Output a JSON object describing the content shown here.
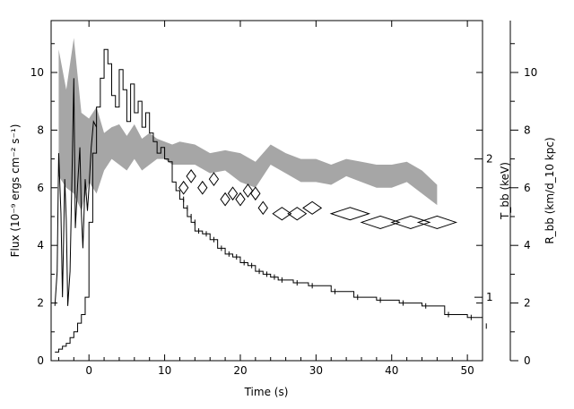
{
  "chart_data": {
    "type": "line",
    "title": "",
    "xlabel": "Time (s)",
    "ylabel_left": "Flux (10⁻⁹ ergs cm⁻² s⁻¹)",
    "ylabel_right_1": "T_bb (keV)",
    "ylabel_right_2": "R_bb (km/d_10 kpc)",
    "xlim": [
      -5,
      52
    ],
    "ylim": [
      0,
      11.8
    ],
    "x_ticks": [
      0,
      10,
      20,
      30,
      40,
      50
    ],
    "x_tick_labels": [
      "0",
      "10",
      "20",
      "30",
      "40",
      "50"
    ],
    "y_ticks": [
      0,
      2,
      4,
      6,
      8,
      10
    ],
    "y_tick_labels": [
      "0",
      "2",
      "4",
      "6",
      "8",
      "10"
    ],
    "y_axis_r1_ticks": [
      {
        "value": 1,
        "label": "1",
        "flux_pos": 2.2
      },
      {
        "value": 2,
        "label": "2",
        "flux_pos": 7.0
      }
    ],
    "y_axis_r2_ticks": [
      0,
      2,
      4,
      6,
      8,
      10
    ],
    "y_axis_r2_tick_labels": [
      "0",
      "2",
      "4",
      "6",
      "8",
      "10"
    ],
    "series": [
      {
        "role": "flux_histogram",
        "style": "step",
        "x": [
          -4.5,
          -4,
          -3.5,
          -3,
          -2.5,
          -2,
          -1.5,
          -1,
          -0.5,
          0,
          0.5,
          1,
          1.5,
          2,
          2.5,
          3,
          3.5,
          4,
          4.5,
          5,
          5.5,
          6,
          6.5,
          7,
          7.5,
          8,
          8.5,
          9,
          9.5,
          10,
          10.5,
          11,
          11.5,
          12,
          12.5,
          13,
          13.5,
          14,
          15,
          16,
          17,
          18,
          19,
          20,
          21,
          22,
          23,
          24,
          25,
          27,
          29,
          32,
          35,
          38,
          41,
          44,
          47,
          50,
          52
        ],
        "y": [
          0.3,
          0.4,
          0.5,
          0.6,
          0.8,
          1.0,
          1.3,
          1.6,
          2.2,
          4.8,
          7.2,
          8.8,
          9.8,
          10.8,
          10.3,
          9.2,
          8.8,
          10.1,
          9.4,
          8.3,
          9.6,
          8.6,
          9.0,
          8.1,
          8.6,
          7.9,
          7.6,
          7.2,
          7.4,
          7.0,
          6.9,
          6.2,
          5.9,
          5.6,
          5.3,
          5.0,
          4.8,
          4.5,
          4.4,
          4.2,
          3.9,
          3.7,
          3.6,
          3.4,
          3.3,
          3.1,
          3.0,
          2.9,
          2.8,
          2.7,
          2.6,
          2.4,
          2.2,
          2.1,
          2.0,
          1.9,
          1.6,
          1.5,
          1.2
        ]
      },
      {
        "role": "flux_early_noisy",
        "style": "line",
        "x": [
          -4.5,
          -4.2,
          -4,
          -3.7,
          -3.5,
          -3.2,
          -3,
          -2.8,
          -2.5,
          -2.2,
          -2,
          -1.8,
          -1.5,
          -1.2,
          -1,
          -0.8,
          -0.5,
          -0.2,
          0,
          0.3,
          0.6,
          1
        ],
        "y": [
          1.9,
          3.1,
          7.2,
          5.1,
          2.2,
          6.3,
          4.9,
          1.9,
          3.1,
          7.0,
          9.8,
          4.6,
          6.1,
          7.4,
          5.1,
          3.9,
          6.3,
          5.2,
          6.0,
          7.4,
          8.3,
          8.1
        ]
      },
      {
        "role": "radius_band",
        "style": "band",
        "x": [
          -4,
          -3,
          -2,
          -1,
          0,
          1,
          2,
          3,
          4,
          5,
          6,
          7,
          8,
          9,
          10,
          11,
          12,
          14,
          16,
          18,
          20,
          22,
          24,
          26,
          28,
          30,
          32,
          34,
          36,
          38,
          40,
          42,
          44,
          46
        ],
        "low": [
          6.4,
          6.0,
          5.8,
          5.2,
          6.2,
          5.8,
          6.6,
          7.0,
          6.8,
          6.6,
          7.0,
          6.6,
          6.8,
          7.0,
          7.0,
          6.8,
          6.8,
          6.8,
          6.5,
          6.6,
          6.2,
          6.0,
          6.8,
          6.5,
          6.2,
          6.2,
          6.1,
          6.4,
          6.2,
          6.0,
          6.0,
          6.2,
          5.8,
          5.4
        ],
        "high": [
          10.8,
          9.4,
          11.2,
          8.6,
          8.4,
          8.8,
          7.9,
          8.1,
          8.2,
          7.8,
          8.2,
          7.7,
          7.9,
          7.7,
          7.6,
          7.5,
          7.6,
          7.5,
          7.2,
          7.3,
          7.2,
          6.9,
          7.5,
          7.2,
          7.0,
          7.0,
          6.8,
          7.0,
          6.9,
          6.8,
          6.8,
          6.9,
          6.6,
          6.1
        ]
      },
      {
        "role": "temperature_diamonds",
        "style": "diamond",
        "points": [
          {
            "x": 12.5,
            "y": 6.0,
            "w": 0.6
          },
          {
            "x": 13.5,
            "y": 6.4,
            "w": 0.6
          },
          {
            "x": 15,
            "y": 6.0,
            "w": 0.6
          },
          {
            "x": 16.5,
            "y": 6.3,
            "w": 0.6
          },
          {
            "x": 18,
            "y": 5.6,
            "w": 0.6
          },
          {
            "x": 19,
            "y": 5.8,
            "w": 0.6
          },
          {
            "x": 20,
            "y": 5.6,
            "w": 0.6
          },
          {
            "x": 21,
            "y": 5.9,
            "w": 0.6
          },
          {
            "x": 22,
            "y": 5.8,
            "w": 0.6
          },
          {
            "x": 23,
            "y": 5.3,
            "w": 0.6
          },
          {
            "x": 25.5,
            "y": 5.1,
            "w": 1.2
          },
          {
            "x": 27.5,
            "y": 5.1,
            "w": 1.2
          },
          {
            "x": 29.5,
            "y": 5.3,
            "w": 1.2
          },
          {
            "x": 34.5,
            "y": 5.1,
            "w": 2.5
          },
          {
            "x": 38.5,
            "y": 4.8,
            "w": 2.5
          },
          {
            "x": 42.5,
            "y": 4.8,
            "w": 2.5
          },
          {
            "x": 46,
            "y": 4.8,
            "w": 2.5
          }
        ]
      }
    ],
    "grid": false,
    "legend": "none"
  }
}
